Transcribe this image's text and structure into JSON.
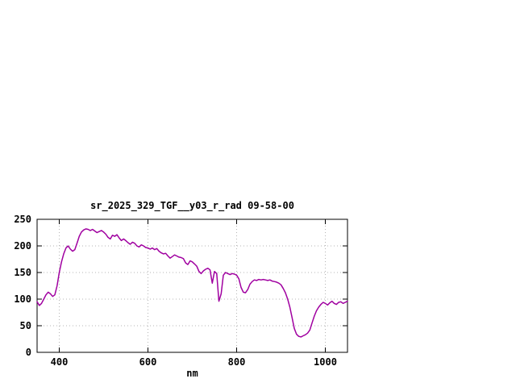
{
  "window": {
    "background": "#ffffff"
  },
  "chart_data": {
    "type": "line",
    "title": "sr_2025_329_TGF__y03_r_rad 09-58-00",
    "xlabel": "nm",
    "ylabel": "",
    "xlim": [
      350,
      1050
    ],
    "ylim": [
      0,
      250
    ],
    "x_ticks": [
      400,
      600,
      800,
      1000
    ],
    "y_ticks": [
      0,
      50,
      100,
      150,
      200,
      250
    ],
    "grid": true,
    "grid_color": "#b4b4b4",
    "line_color": "#a000a0",
    "border_color": "#000000",
    "series_name": "sr_2025_329_TGF__y03_r_rad",
    "x": [
      350,
      355,
      360,
      365,
      370,
      375,
      380,
      385,
      390,
      395,
      400,
      405,
      410,
      415,
      420,
      425,
      430,
      435,
      440,
      445,
      450,
      455,
      460,
      465,
      470,
      475,
      480,
      485,
      490,
      495,
      500,
      505,
      510,
      515,
      520,
      525,
      530,
      535,
      540,
      545,
      550,
      555,
      560,
      565,
      570,
      575,
      580,
      585,
      590,
      595,
      600,
      605,
      610,
      615,
      620,
      625,
      630,
      635,
      640,
      645,
      650,
      655,
      660,
      665,
      670,
      675,
      680,
      685,
      690,
      695,
      700,
      705,
      710,
      715,
      720,
      725,
      730,
      735,
      740,
      745,
      750,
      755,
      760,
      765,
      770,
      775,
      780,
      785,
      790,
      795,
      800,
      805,
      810,
      815,
      820,
      825,
      830,
      835,
      840,
      845,
      850,
      855,
      860,
      865,
      870,
      875,
      880,
      885,
      890,
      895,
      900,
      905,
      910,
      915,
      920,
      925,
      930,
      935,
      940,
      945,
      950,
      955,
      960,
      965,
      970,
      975,
      980,
      985,
      990,
      995,
      1000,
      1005,
      1010,
      1015,
      1020,
      1025,
      1030,
      1035,
      1040,
      1045,
      1050
    ],
    "values": [
      95,
      88,
      92,
      100,
      108,
      113,
      110,
      105,
      108,
      125,
      150,
      170,
      185,
      196,
      200,
      194,
      190,
      193,
      205,
      218,
      226,
      230,
      232,
      231,
      229,
      231,
      228,
      225,
      227,
      229,
      226,
      222,
      216,
      213,
      220,
      218,
      221,
      215,
      210,
      213,
      210,
      206,
      203,
      207,
      205,
      200,
      198,
      202,
      200,
      197,
      196,
      194,
      196,
      193,
      195,
      190,
      187,
      185,
      186,
      181,
      177,
      180,
      183,
      181,
      179,
      178,
      176,
      168,
      165,
      172,
      170,
      166,
      162,
      152,
      148,
      153,
      156,
      158,
      155,
      130,
      152,
      148,
      96,
      110,
      145,
      150,
      148,
      146,
      148,
      147,
      145,
      138,
      122,
      113,
      112,
      118,
      128,
      133,
      136,
      135,
      137,
      136,
      137,
      136,
      135,
      136,
      134,
      133,
      132,
      130,
      127,
      120,
      112,
      100,
      85,
      65,
      45,
      34,
      30,
      29,
      31,
      33,
      36,
      42,
      55,
      68,
      78,
      85,
      90,
      94,
      92,
      89,
      93,
      96,
      92,
      90,
      94,
      95,
      92,
      94,
      96
    ]
  }
}
